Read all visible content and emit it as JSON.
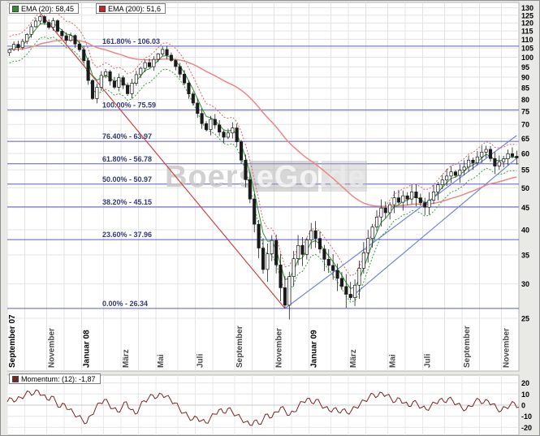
{
  "legends": {
    "ema20": {
      "label": "EMA (20): 58,45",
      "color": "#2f8f2f"
    },
    "ema200": {
      "label": "EMA (200): 51,6",
      "color": "#cc2222"
    },
    "momentum": {
      "label": "Momentum: (12): -1,87",
      "color": "#7a2525"
    }
  },
  "watermark": {
    "part1": "Boers",
    "part2": "eGo",
    "part3": ".de"
  },
  "chart_data": [
    {
      "type": "candlestick",
      "title": "Price chart with EMA(20), EMA(200), Fibonacci retracements and trendlines",
      "y_axis": {
        "scale": "log",
        "ticks": [
          130,
          125,
          120,
          115,
          110,
          105,
          100,
          95,
          90,
          85,
          80,
          75,
          70,
          65,
          60,
          55,
          50,
          45,
          40,
          35,
          30,
          25
        ],
        "top_price": 131.5,
        "bottom_price": 25
      },
      "x_axis_labels": [
        {
          "label": "September 07",
          "week": 0,
          "strong": true
        },
        {
          "label": "November",
          "week": 9,
          "strong": false
        },
        {
          "label": "Januar 08",
          "week": 17,
          "strong": true
        },
        {
          "label": "März",
          "week": 26,
          "strong": false
        },
        {
          "label": "Mai",
          "week": 34,
          "strong": false
        },
        {
          "label": "Juli",
          "week": 43,
          "strong": false
        },
        {
          "label": "September",
          "week": 52,
          "strong": false
        },
        {
          "label": "November",
          "week": 61,
          "strong": false
        },
        {
          "label": "Januar 09",
          "week": 69,
          "strong": true
        },
        {
          "label": "März",
          "week": 78,
          "strong": false
        },
        {
          "label": "Mai",
          "week": 87,
          "strong": false
        },
        {
          "label": "Juli",
          "week": 95,
          "strong": false
        },
        {
          "label": "September",
          "week": 104,
          "strong": false
        },
        {
          "label": "November",
          "week": 113,
          "strong": false
        }
      ],
      "month_start_weeks": [
        0,
        4,
        9,
        13,
        17,
        22,
        26,
        30,
        34,
        39,
        43,
        47,
        52,
        56,
        61,
        65,
        69,
        74,
        78,
        82,
        87,
        91,
        95,
        100,
        104,
        108,
        113
      ],
      "open_first": 102.5,
      "closes": [
        104.2,
        107.1,
        105.3,
        108.8,
        112.9,
        117.6,
        121.2,
        124.1,
        120.3,
        117.2,
        121.4,
        114.8,
        112.1,
        109.4,
        112.2,
        107.3,
        104.1,
        98.2,
        88.4,
        80.3,
        85.2,
        90.8,
        92.6,
        88.1,
        85.3,
        89.7,
        86.2,
        82.4,
        87.1,
        91.2,
        94.3,
        97.2,
        95.1,
        98.9,
        101.8,
        104.2,
        101.1,
        98.3,
        95.2,
        91.4,
        87.2,
        82.3,
        78.4,
        74.2,
        70.3,
        68.1,
        71.9,
        69.8,
        67.2,
        65.4,
        66.9,
        68.7,
        63.8,
        57.9,
        52.2,
        47.1,
        41.2,
        36.3,
        32.4,
        35.2,
        37.8,
        33.2,
        29.4,
        26.8,
        31.2,
        34.3,
        36.8,
        35.1,
        37.9,
        39.8,
        38.2,
        36.1,
        34.2,
        33.1,
        32.2,
        30.9,
        29.6,
        28.4,
        27.9,
        29.8,
        32.6,
        35.4,
        38.2,
        40.6,
        42.8,
        44.9,
        43.8,
        45.7,
        47.4,
        46.3,
        47.9,
        47.1,
        48.9,
        47.4,
        46.2,
        45.1,
        46.8,
        48.9,
        50.8,
        52.1,
        53.2,
        54.4,
        53.4,
        54.9,
        55.8,
        57.9,
        57.1,
        58.9,
        60.4,
        61.3,
        58.4,
        56.1,
        57.4,
        58.3,
        59.9,
        59.1,
        58.6
      ],
      "low_overrides": {
        "63": 26.34,
        "78": 27.5
      },
      "fib_levels": [
        {
          "label": "161.80% - 106.03",
          "value": 106.03
        },
        {
          "label": "100.00% - 75.59",
          "value": 75.59
        },
        {
          "label": "76.40% - 63.97",
          "value": 63.97
        },
        {
          "label": "61.80% - 56.78",
          "value": 56.78
        },
        {
          "label": "50.00% - 50.97",
          "value": 50.97
        },
        {
          "label": "38.20% - 45.15",
          "value": 45.15
        },
        {
          "label": "23.60% - 37.96",
          "value": 37.96
        },
        {
          "label": "0.00% - 26.34",
          "value": 26.34
        }
      ],
      "trendlines": [
        {
          "from_week": 7,
          "from_price": 126.5,
          "to_week": 63,
          "to_price": 26.34,
          "color": "#cc4444"
        },
        {
          "from_week": 63,
          "from_price": 26.34,
          "to_week": 116,
          "to_price": 66.0,
          "color": "#7585d6"
        },
        {
          "from_week": 78,
          "from_price": 27.9,
          "to_week": 116,
          "to_price": 58.5,
          "color": "#7585d6"
        }
      ],
      "indicators": {
        "ema_fast": {
          "period_weeks": 4,
          "color": "#2f8f2f"
        },
        "ema_slow": {
          "period_weeks": 40,
          "color": "#ef8585"
        },
        "envelope_pct": 0.07,
        "envelope_upper_color": "#d46a6a",
        "envelope_lower_color": "#3aa03a"
      }
    },
    {
      "type": "line",
      "name": "Momentum (12)",
      "last_value": -1.87,
      "color": "#7a2525",
      "y_ticks": [
        20,
        10,
        0,
        -10,
        -20
      ],
      "y_range": [
        -27,
        27
      ],
      "values": [
        3,
        6,
        4,
        7,
        9,
        12,
        10,
        13,
        9,
        5,
        8,
        3,
        -2,
        1,
        -4,
        -7,
        -10,
        -13,
        -16,
        -9,
        -3,
        2,
        5,
        1,
        -3,
        -6,
        -2,
        3,
        -4,
        -8,
        -2,
        4,
        6,
        9,
        7,
        10,
        8,
        5,
        2,
        -3,
        -7,
        -10,
        -13,
        -11,
        -14,
        -16,
        -12,
        -8,
        -4,
        -7,
        -3,
        -6,
        -9,
        -12,
        -15,
        -18,
        -14,
        -17,
        -13,
        -8,
        -11,
        -6,
        -2,
        -5,
        -9,
        -6,
        -1,
        3,
        6,
        2,
        5,
        1,
        -2,
        -5,
        -3,
        -6,
        -4,
        -7,
        -5,
        -2,
        1,
        4,
        7,
        10,
        8,
        11,
        9,
        6,
        3,
        6,
        2,
        -1,
        3,
        1,
        -2,
        -4,
        -1,
        2,
        5,
        3,
        6,
        4,
        1,
        -2,
        -4,
        -1,
        3,
        5,
        2,
        4,
        1,
        -3,
        -5,
        -2,
        0,
        2,
        -1.87
      ]
    }
  ]
}
